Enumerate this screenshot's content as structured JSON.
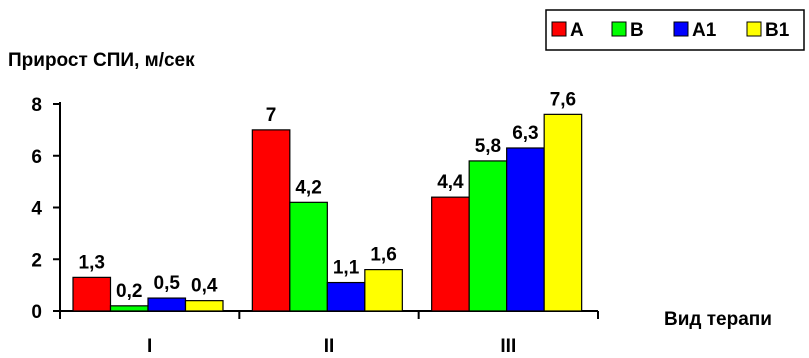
{
  "chart_data": {
    "type": "bar",
    "title": "",
    "ylabel": "Прирост СПИ, м/сек",
    "xlabel": "Вид терапи",
    "categories": [
      "I",
      "II",
      "III"
    ],
    "ylim": [
      0,
      8
    ],
    "yticks": [
      0,
      2,
      4,
      6,
      8
    ],
    "grid": false,
    "legend_position": "top-right",
    "series": [
      {
        "name": "A",
        "color": "#ff0000",
        "values": [
          1.3,
          7,
          4.4
        ],
        "labels": [
          "1,3",
          "7",
          "4,4"
        ]
      },
      {
        "name": "B",
        "color": "#00ff00",
        "values": [
          0.2,
          4.2,
          5.8
        ],
        "labels": [
          "0,2",
          "4,2",
          "5,8"
        ]
      },
      {
        "name": "A1",
        "color": "#0000ff",
        "values": [
          0.5,
          1.1,
          6.3
        ],
        "labels": [
          "0,5",
          "1,1",
          "6,3"
        ]
      },
      {
        "name": "B1",
        "color": "#ffff00",
        "values": [
          0.4,
          1.6,
          7.6
        ],
        "labels": [
          "0,4",
          "1,6",
          "7,6"
        ]
      }
    ]
  }
}
